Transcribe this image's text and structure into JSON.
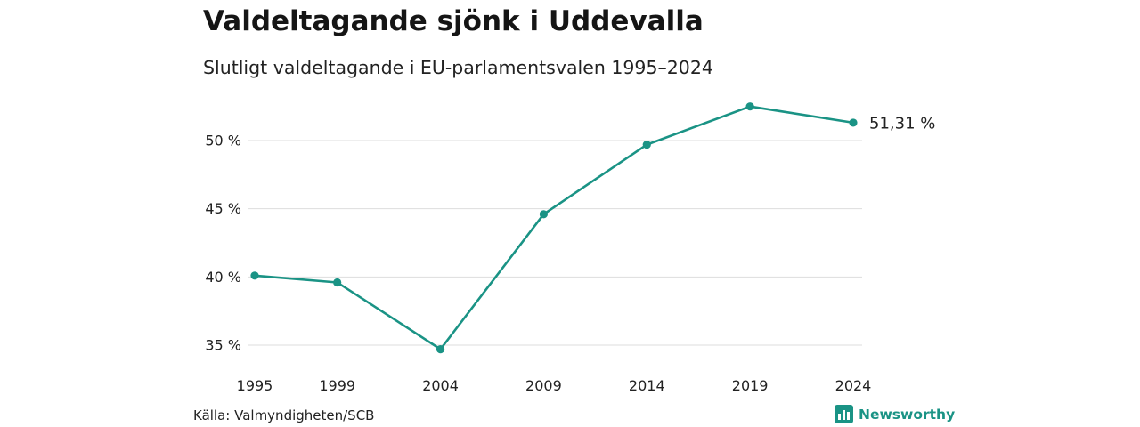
{
  "header": {
    "title": "Valdeltagande sjönk i Uddevalla",
    "subtitle": "Slutligt valdeltagande i EU-parlamentsvalen 1995–2024"
  },
  "footer": {
    "source": "Källa: Valmyndigheten/SCB",
    "brand": "Newsworthy",
    "brand_icon": "bar-chart-icon"
  },
  "colors": {
    "line": "#1a9385",
    "grid": "#dddddd",
    "brand": "#1a9385"
  },
  "chart_data": {
    "type": "line",
    "title": "Valdeltagande sjönk i Uddevalla",
    "subtitle": "Slutligt valdeltagande i EU-parlamentsvalen 1995–2024",
    "categories": [
      "1995",
      "1999",
      "2004",
      "2009",
      "2014",
      "2019",
      "2024"
    ],
    "x": [
      1995,
      1999,
      2004,
      2009,
      2014,
      2019,
      2024
    ],
    "series": [
      {
        "values": [
          40.1,
          39.6,
          34.7,
          44.6,
          49.7,
          52.5,
          51.31
        ]
      }
    ],
    "yticks": [
      35,
      40,
      45,
      50
    ],
    "ytick_labels": [
      "35 %",
      "40 %",
      "45 %",
      "50 %"
    ],
    "ylim": [
      35,
      50
    ],
    "end_label": "51,31 %",
    "grid": true,
    "legend": "none",
    "source": "Källa: Valmyndigheten/SCB"
  }
}
